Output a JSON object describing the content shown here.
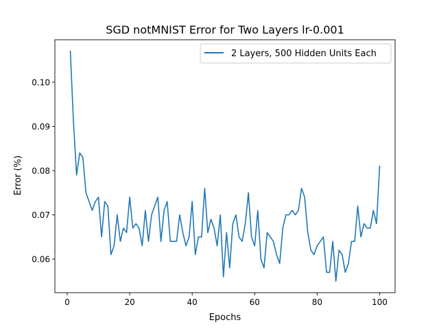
{
  "chart_data": {
    "type": "line",
    "title": "SGD notMNIST Error for Two Layers lr-0.001",
    "xlabel": "Epochs",
    "ylabel": "Error (%)",
    "xlim": [
      -3.95,
      104.95
    ],
    "ylim": [
      0.0524,
      0.1096
    ],
    "xticks": [
      0,
      20,
      40,
      60,
      80,
      100
    ],
    "xtick_labels": [
      "0",
      "20",
      "40",
      "60",
      "80",
      "100"
    ],
    "yticks": [
      0.06,
      0.07,
      0.08,
      0.09,
      0.1
    ],
    "ytick_labels": [
      "0.06",
      "0.07",
      "0.08",
      "0.09",
      "0.10"
    ],
    "grid": false,
    "legend_position": "top-right",
    "series": [
      {
        "name": "2 Layers, 500 Hidden Units Each",
        "color": "#1f77b4",
        "x": [
          1,
          2,
          3,
          4,
          5,
          6,
          7,
          8,
          9,
          10,
          11,
          12,
          13,
          14,
          15,
          16,
          17,
          18,
          19,
          20,
          21,
          22,
          23,
          24,
          25,
          26,
          27,
          28,
          29,
          30,
          31,
          32,
          33,
          34,
          35,
          36,
          37,
          38,
          39,
          40,
          41,
          42,
          43,
          44,
          45,
          46,
          47,
          48,
          49,
          50,
          51,
          52,
          53,
          54,
          55,
          56,
          57,
          58,
          59,
          60,
          61,
          62,
          63,
          64,
          65,
          66,
          67,
          68,
          69,
          70,
          71,
          72,
          73,
          74,
          75,
          76,
          77,
          78,
          79,
          80,
          81,
          82,
          83,
          84,
          85,
          86,
          87,
          88,
          89,
          90,
          91,
          92,
          93,
          94,
          95,
          96,
          97,
          98,
          99,
          100
        ],
        "values": [
          0.107,
          0.091,
          0.079,
          0.084,
          0.083,
          0.075,
          0.073,
          0.071,
          0.073,
          0.074,
          0.065,
          0.073,
          0.072,
          0.061,
          0.063,
          0.07,
          0.064,
          0.067,
          0.066,
          0.074,
          0.067,
          0.068,
          0.067,
          0.063,
          0.071,
          0.064,
          0.07,
          0.072,
          0.074,
          0.064,
          0.071,
          0.073,
          0.064,
          0.064,
          0.064,
          0.07,
          0.066,
          0.063,
          0.065,
          0.073,
          0.061,
          0.065,
          0.065,
          0.076,
          0.066,
          0.069,
          0.067,
          0.063,
          0.07,
          0.056,
          0.066,
          0.058,
          0.068,
          0.07,
          0.065,
          0.064,
          0.068,
          0.075,
          0.065,
          0.063,
          0.071,
          0.06,
          0.058,
          0.066,
          0.065,
          0.064,
          0.061,
          0.059,
          0.067,
          0.07,
          0.07,
          0.071,
          0.07,
          0.071,
          0.076,
          0.074,
          0.066,
          0.062,
          0.061,
          0.063,
          0.064,
          0.065,
          0.057,
          0.057,
          0.064,
          0.055,
          0.062,
          0.061,
          0.057,
          0.059,
          0.064,
          0.064,
          0.072,
          0.065,
          0.068,
          0.067,
          0.067,
          0.071,
          0.068,
          0.081
        ]
      }
    ]
  }
}
